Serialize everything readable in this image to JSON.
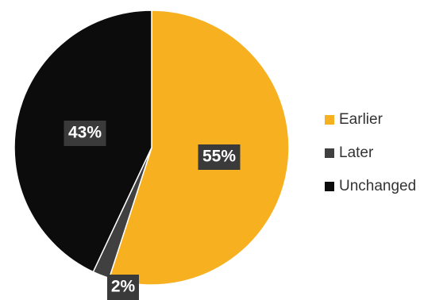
{
  "chart_data": {
    "type": "pie",
    "categories": [
      "Earlier",
      "Later",
      "Unchanged"
    ],
    "values": [
      55,
      2,
      43
    ],
    "labels": [
      "55%",
      "2%",
      "43%"
    ],
    "colors": [
      "#f7b020",
      "#404040",
      "#0c0c0c"
    ],
    "label_box_color": "#3a3a3a",
    "legend_position": "right"
  }
}
